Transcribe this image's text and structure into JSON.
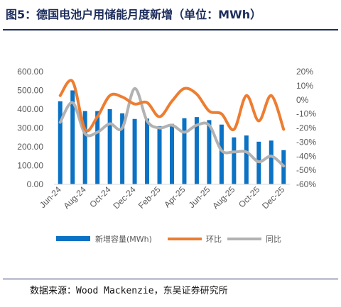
{
  "header": {
    "title": "图5：德国电池户用储能月度新增（单位：MWh）"
  },
  "footer": {
    "source": "数据来源：Wood Mackenzie，东吴证券研究所"
  },
  "colors": {
    "bars": "#0b72c4",
    "mom": "#ed7d31",
    "yoy": "#b2b2b2",
    "rule": "#1d2d5c"
  },
  "chart_data": {
    "type": "bar",
    "categories": [
      "Jun-24",
      "Jul-24",
      "Aug-24",
      "Sep-24",
      "Oct-24",
      "Nov-24",
      "Dec-24",
      "Jan-25",
      "Feb-25",
      "Mar-25",
      "Apr-25",
      "May-25",
      "Jun-25",
      "Jul-25",
      "Aug-25",
      "Sep-25",
      "Oct-25",
      "Nov-25",
      "Dec-25"
    ],
    "x_tick_labels": [
      "Jun-24",
      "Aug-24",
      "Oct-24",
      "Dec-24",
      "Feb-25",
      "Apr-25",
      "Jun-25",
      "Aug-25",
      "Oct-25",
      "Dec-25"
    ],
    "series": [
      {
        "name": "新增容量(MWh)",
        "type": "bar",
        "axis": "left",
        "values": [
          442,
          500,
          390,
          390,
          400,
          378,
          348,
          350,
          310,
          322,
          352,
          358,
          342,
          318,
          250,
          260,
          227,
          233,
          182
        ]
      },
      {
        "name": "环比",
        "type": "line",
        "axis": "right",
        "values": [
          3,
          13,
          -21,
          -12,
          3,
          2,
          -3,
          -2,
          -12,
          -1,
          8,
          4,
          -8,
          -10,
          -21,
          3,
          -15,
          3,
          -21
        ]
      },
      {
        "name": "同比",
        "type": "line",
        "axis": "right",
        "values": [
          -16,
          -2,
          -24,
          -23,
          -17,
          -20,
          8,
          -15,
          -20,
          -18,
          -23,
          -18,
          -18,
          -36,
          -37,
          -37,
          -44,
          -40,
          -47
        ]
      }
    ],
    "y_left": {
      "lim": [
        0,
        600
      ],
      "ticks": [
        "0.00",
        "100.00",
        "200.00",
        "300.00",
        "400.00",
        "500.00",
        "600.00"
      ]
    },
    "y_right": {
      "lim": [
        -60,
        20
      ],
      "ticks": [
        "-60%",
        "-50%",
        "-40%",
        "-30%",
        "-20%",
        "-10%",
        "0%",
        "10%",
        "20%"
      ]
    },
    "legend_position": "bottom",
    "grid": false
  }
}
